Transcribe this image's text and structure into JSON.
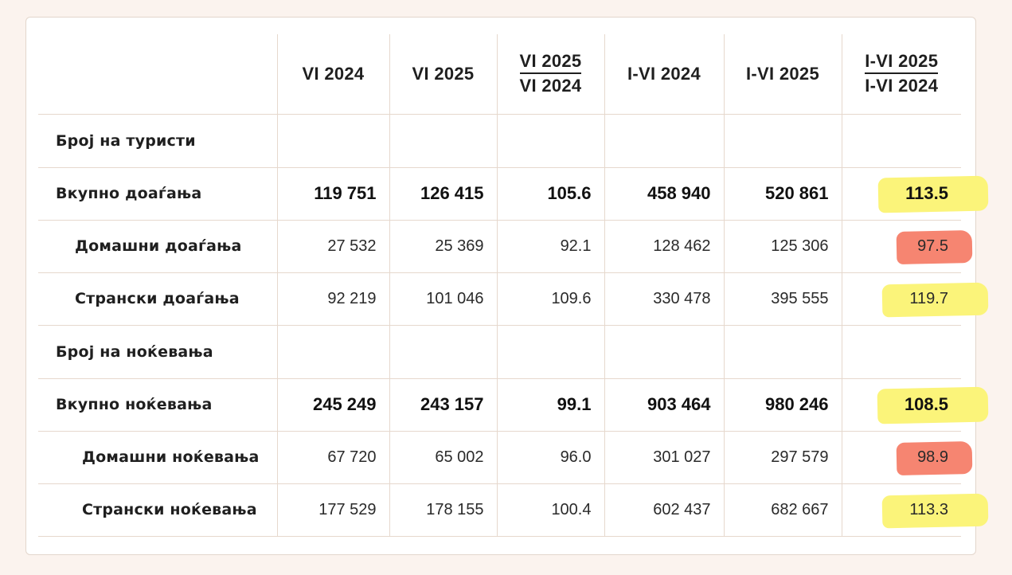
{
  "header": {
    "col1": "VI 2024",
    "col2": "VI 2025",
    "col3_num": "VI 2025",
    "col3_den": "VI 2024",
    "col4": "I-VI 2024",
    "col5": "I-VI 2025",
    "col6_num": "I-VI 2025",
    "col6_den": "I-VI 2024"
  },
  "rows": [
    {
      "label": "Број на туристи",
      "values": [
        "",
        "",
        "",
        "",
        "",
        ""
      ]
    },
    {
      "label": "Вкупно доаѓања",
      "values": [
        "119 751",
        "126 415",
        "105.6",
        "458 940",
        "520 861",
        "113.5"
      ],
      "highlight": "yellow"
    },
    {
      "label": "Домашни доаѓања",
      "values": [
        "27 532",
        "25 369",
        "92.1",
        "128 462",
        "125 306",
        "97.5"
      ],
      "highlight": "red"
    },
    {
      "label": "Странски доаѓања",
      "values": [
        "92 219",
        "101 046",
        "109.6",
        "330 478",
        "395 555",
        "119.7"
      ],
      "highlight": "yellow"
    },
    {
      "label": "Број на ноќевања",
      "values": [
        "",
        "",
        "",
        "",
        "",
        ""
      ]
    },
    {
      "label": "Вкупно ноќевања",
      "values": [
        "245 249",
        "243 157",
        "99.1",
        "903 464",
        "980 246",
        "108.5"
      ],
      "highlight": "yellow"
    },
    {
      "label": "Домашни ноќевања",
      "values": [
        "67 720",
        "65 002",
        "96.0",
        "301 027",
        "297 579",
        "98.9"
      ],
      "highlight": "red"
    },
    {
      "label": "Странски ноќевања",
      "values": [
        "177 529",
        "178 155",
        "100.4",
        "602 437",
        "682 667",
        "113.3"
      ],
      "highlight": "yellow"
    }
  ],
  "colors": {
    "highlight_yellow": "#fbf47a",
    "highlight_red": "#f68571",
    "background": "#fbf3ee"
  }
}
